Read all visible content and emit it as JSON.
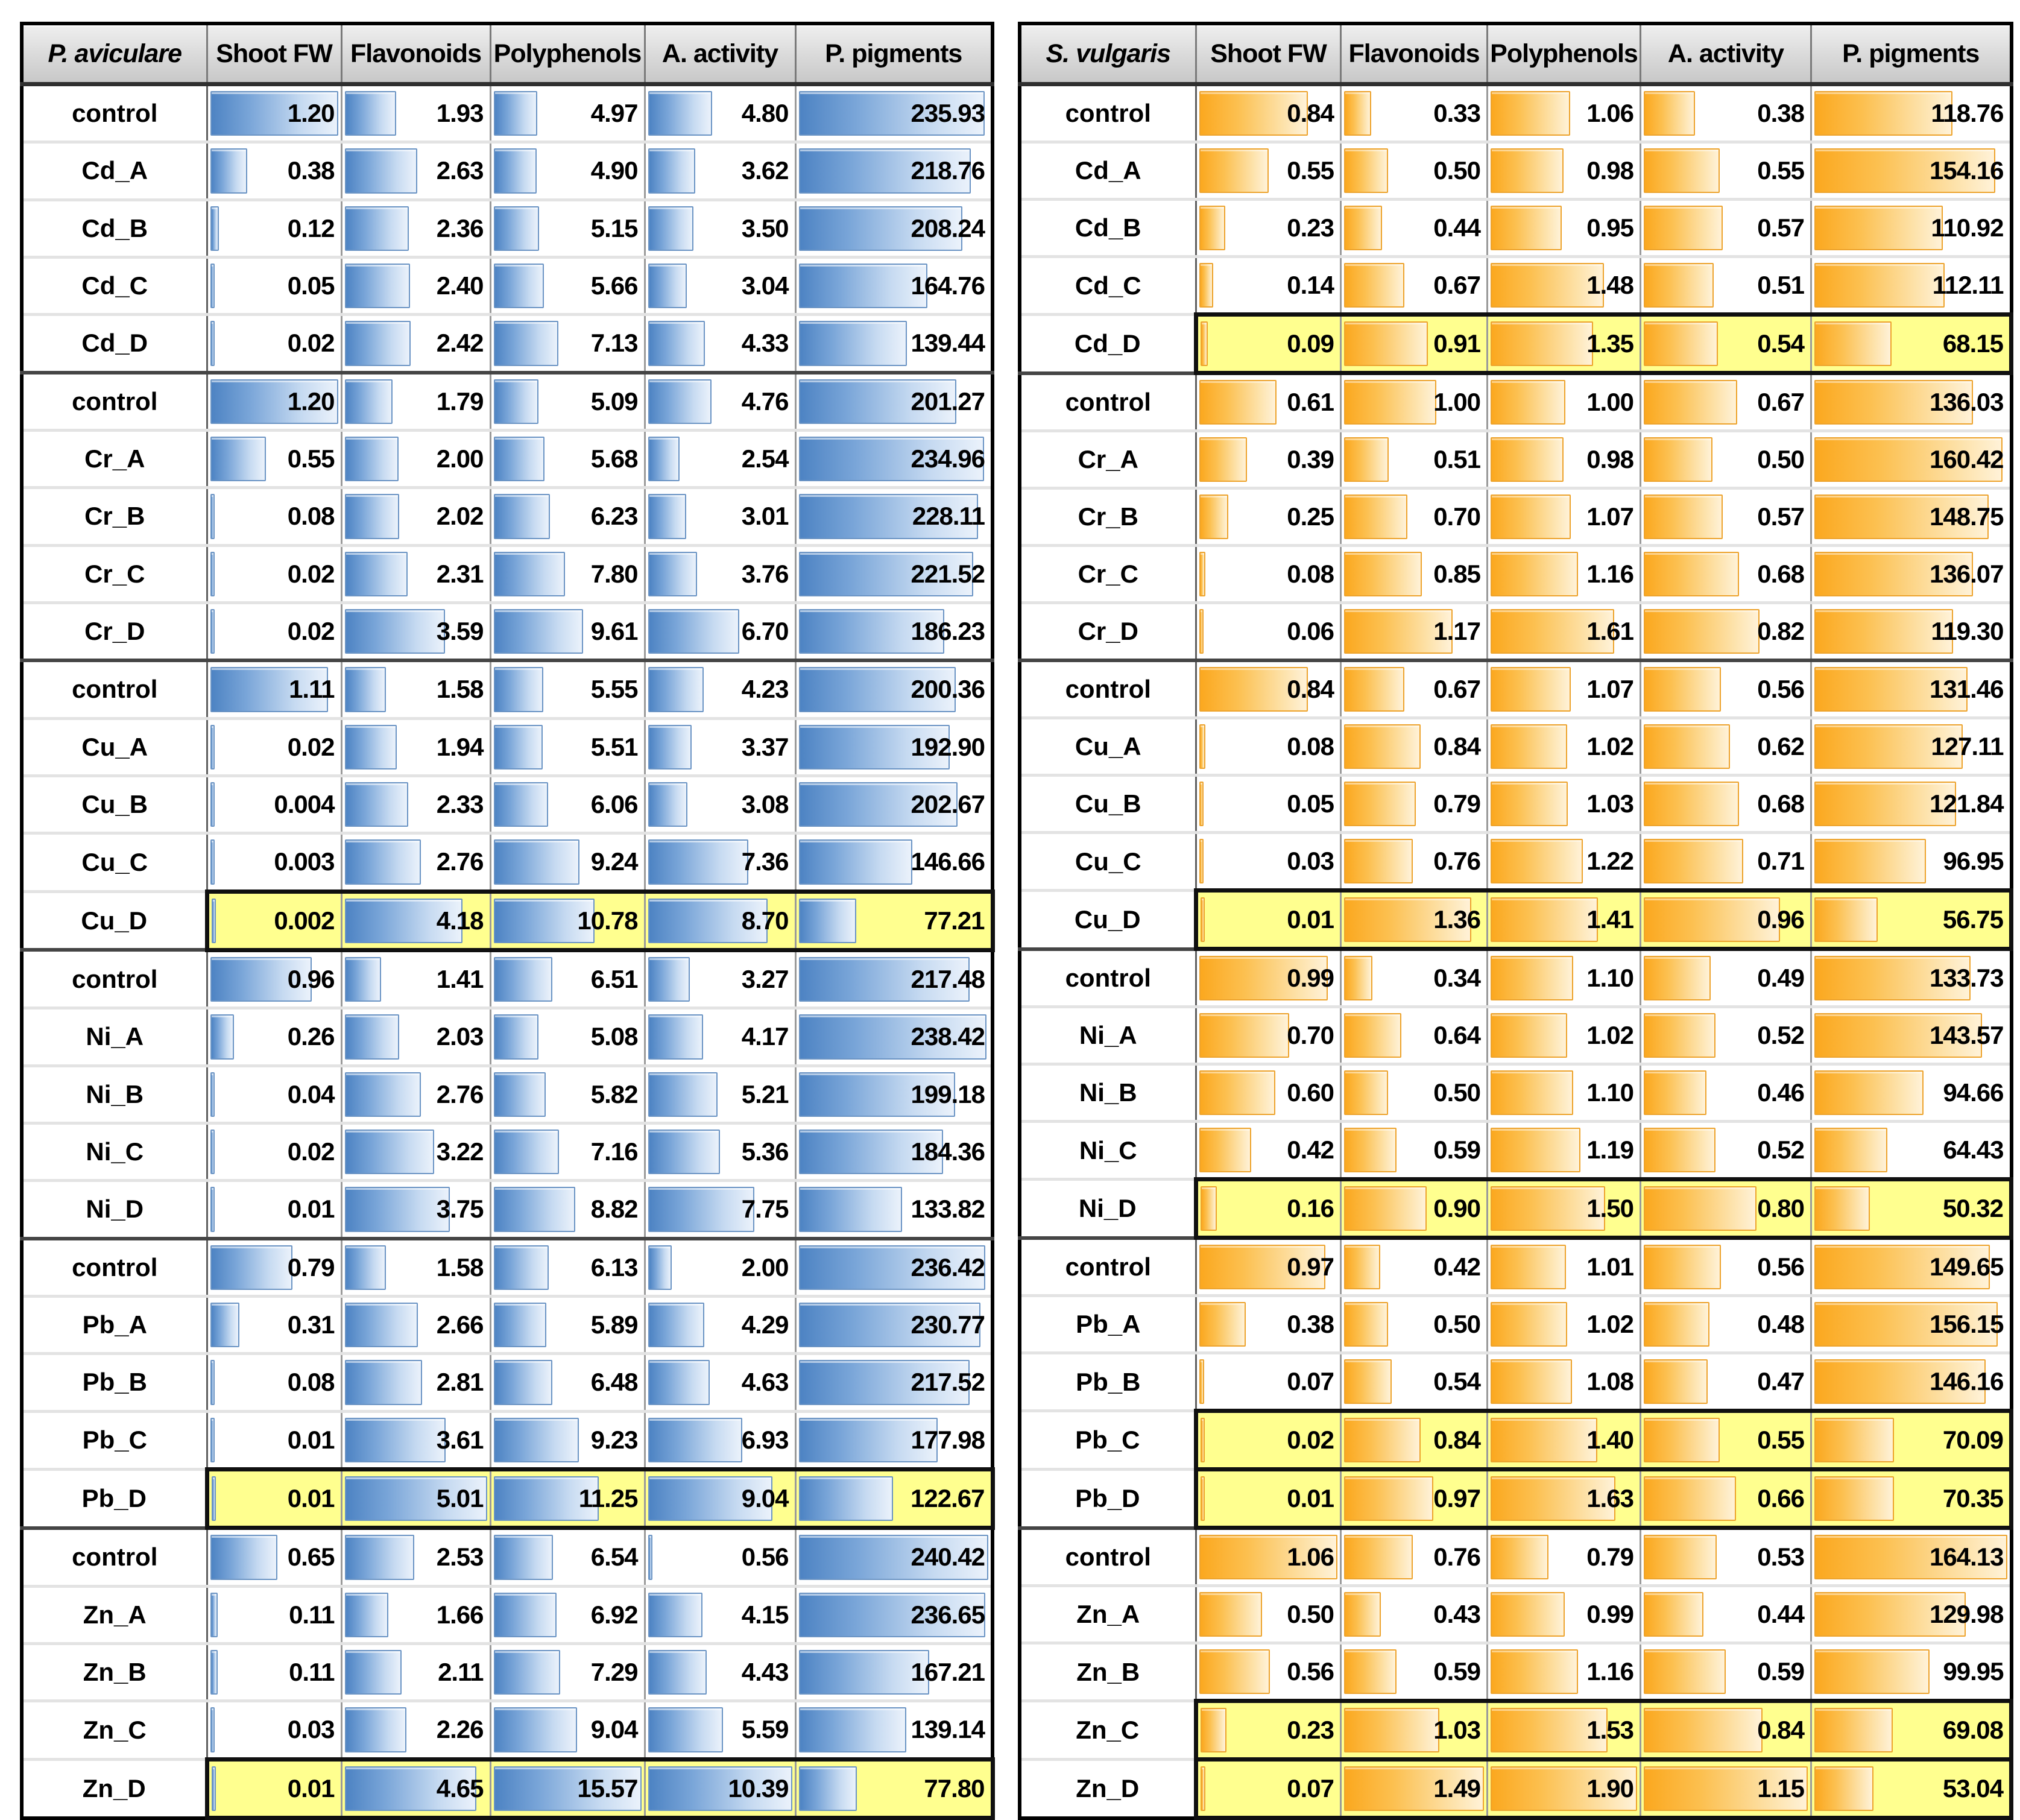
{
  "colors": {
    "blue_bar_start": "#4d83c3",
    "blue_bar_end": "#ebf2fb",
    "blue_bar_border": "#6b94c4",
    "orange_bar_start": "#fba81f",
    "orange_bar_end": "#fff2d8",
    "orange_bar_border": "#eda32d",
    "highlight_fill": "#ffff8f",
    "header_fill": "#d9d9d9"
  },
  "chart_data": {
    "type": "table",
    "subtype": "conditional-formatting-data-bars",
    "note_layout": "two side-by-side tables; bar length = value / column max; yellow rows are highlighted with thick black border",
    "tables": [
      {
        "species": "P. aviculare",
        "bar_theme": "blue",
        "columns": [
          "Shoot FW",
          "Flavonoids",
          "Polyphenols",
          "A. activity",
          "P. pigments"
        ],
        "rows": [
          {
            "label": "control",
            "values": [
              "1.20",
              "1.93",
              "4.97",
              "4.80",
              "235.93"
            ],
            "highlight": false
          },
          {
            "label": "Cd_A",
            "values": [
              "0.38",
              "2.63",
              "4.90",
              "3.62",
              "218.76"
            ],
            "highlight": false
          },
          {
            "label": "Cd_B",
            "values": [
              "0.12",
              "2.36",
              "5.15",
              "3.50",
              "208.24"
            ],
            "highlight": false
          },
          {
            "label": "Cd_C",
            "values": [
              "0.05",
              "2.40",
              "5.66",
              "3.04",
              "164.76"
            ],
            "highlight": false
          },
          {
            "label": "Cd_D",
            "values": [
              "0.02",
              "2.42",
              "7.13",
              "4.33",
              "139.44"
            ],
            "highlight": false
          },
          {
            "label": "control",
            "values": [
              "1.20",
              "1.79",
              "5.09",
              "4.76",
              "201.27"
            ],
            "highlight": false
          },
          {
            "label": "Cr_A",
            "values": [
              "0.55",
              "2.00",
              "5.68",
              "2.54",
              "234.96"
            ],
            "highlight": false
          },
          {
            "label": "Cr_B",
            "values": [
              "0.08",
              "2.02",
              "6.23",
              "3.01",
              "228.11"
            ],
            "highlight": false
          },
          {
            "label": "Cr_C",
            "values": [
              "0.02",
              "2.31",
              "7.80",
              "3.76",
              "221.52"
            ],
            "highlight": false
          },
          {
            "label": "Cr_D",
            "values": [
              "0.02",
              "3.59",
              "9.61",
              "6.70",
              "186.23"
            ],
            "highlight": false
          },
          {
            "label": "control",
            "values": [
              "1.11",
              "1.58",
              "5.55",
              "4.23",
              "200.36"
            ],
            "highlight": false
          },
          {
            "label": "Cu_A",
            "values": [
              "0.02",
              "1.94",
              "5.51",
              "3.37",
              "192.90"
            ],
            "highlight": false
          },
          {
            "label": "Cu_B",
            "values": [
              "0.004",
              "2.33",
              "6.06",
              "3.08",
              "202.67"
            ],
            "highlight": false
          },
          {
            "label": "Cu_C",
            "values": [
              "0.003",
              "2.76",
              "9.24",
              "7.36",
              "146.66"
            ],
            "highlight": false
          },
          {
            "label": "Cu_D",
            "values": [
              "0.002",
              "4.18",
              "10.78",
              "8.70",
              "77.21"
            ],
            "highlight": true
          },
          {
            "label": "control",
            "values": [
              "0.96",
              "1.41",
              "6.51",
              "3.27",
              "217.48"
            ],
            "highlight": false
          },
          {
            "label": "Ni_A",
            "values": [
              "0.26",
              "2.03",
              "5.08",
              "4.17",
              "238.42"
            ],
            "highlight": false
          },
          {
            "label": "Ni_B",
            "values": [
              "0.04",
              "2.76",
              "5.82",
              "5.21",
              "199.18"
            ],
            "highlight": false
          },
          {
            "label": "Ni_C",
            "values": [
              "0.02",
              "3.22",
              "7.16",
              "5.36",
              "184.36"
            ],
            "highlight": false
          },
          {
            "label": "Ni_D",
            "values": [
              "0.01",
              "3.75",
              "8.82",
              "7.75",
              "133.82"
            ],
            "highlight": false
          },
          {
            "label": "control",
            "values": [
              "0.79",
              "1.58",
              "6.13",
              "2.00",
              "236.42"
            ],
            "highlight": false
          },
          {
            "label": "Pb_A",
            "values": [
              "0.31",
              "2.66",
              "5.89",
              "4.29",
              "230.77"
            ],
            "highlight": false
          },
          {
            "label": "Pb_B",
            "values": [
              "0.08",
              "2.81",
              "6.48",
              "4.63",
              "217.52"
            ],
            "highlight": false
          },
          {
            "label": "Pb_C",
            "values": [
              "0.01",
              "3.61",
              "9.23",
              "6.93",
              "177.98"
            ],
            "highlight": false
          },
          {
            "label": "Pb_D",
            "values": [
              "0.01",
              "5.01",
              "11.25",
              "9.04",
              "122.67"
            ],
            "highlight": true
          },
          {
            "label": "control",
            "values": [
              "0.65",
              "2.53",
              "6.54",
              "0.56",
              "240.42"
            ],
            "highlight": false
          },
          {
            "label": "Zn_A",
            "values": [
              "0.11",
              "1.66",
              "6.92",
              "4.15",
              "236.65"
            ],
            "highlight": false
          },
          {
            "label": "Zn_B",
            "values": [
              "0.11",
              "2.11",
              "7.29",
              "4.43",
              "167.21"
            ],
            "highlight": false
          },
          {
            "label": "Zn_C",
            "values": [
              "0.03",
              "2.26",
              "9.04",
              "5.59",
              "139.14"
            ],
            "highlight": false
          },
          {
            "label": "Zn_D",
            "values": [
              "0.01",
              "4.65",
              "15.57",
              "10.39",
              "77.80"
            ],
            "highlight": true
          }
        ]
      },
      {
        "species": "S. vulgaris",
        "bar_theme": "orange",
        "columns": [
          "Shoot FW",
          "Flavonoids",
          "Polyphenols",
          "A. activity",
          "P. pigments"
        ],
        "rows": [
          {
            "label": "control",
            "values": [
              "0.84",
              "0.33",
              "1.06",
              "0.38",
              "118.76"
            ],
            "highlight": false
          },
          {
            "label": "Cd_A",
            "values": [
              "0.55",
              "0.50",
              "0.98",
              "0.55",
              "154.16"
            ],
            "highlight": false
          },
          {
            "label": "Cd_B",
            "values": [
              "0.23",
              "0.44",
              "0.95",
              "0.57",
              "110.92"
            ],
            "highlight": false
          },
          {
            "label": "Cd_C",
            "values": [
              "0.14",
              "0.67",
              "1.48",
              "0.51",
              "112.11"
            ],
            "highlight": false
          },
          {
            "label": "Cd_D",
            "values": [
              "0.09",
              "0.91",
              "1.35",
              "0.54",
              "68.15"
            ],
            "highlight": true
          },
          {
            "label": "control",
            "values": [
              "0.61",
              "1.00",
              "1.00",
              "0.67",
              "136.03"
            ],
            "highlight": false
          },
          {
            "label": "Cr_A",
            "values": [
              "0.39",
              "0.51",
              "0.98",
              "0.50",
              "160.42"
            ],
            "highlight": false
          },
          {
            "label": "Cr_B",
            "values": [
              "0.25",
              "0.70",
              "1.07",
              "0.57",
              "148.75"
            ],
            "highlight": false
          },
          {
            "label": "Cr_C",
            "values": [
              "0.08",
              "0.85",
              "1.16",
              "0.68",
              "136.07"
            ],
            "highlight": false
          },
          {
            "label": "Cr_D",
            "values": [
              "0.06",
              "1.17",
              "1.61",
              "0.82",
              "119.30"
            ],
            "highlight": false
          },
          {
            "label": "control",
            "values": [
              "0.84",
              "0.67",
              "1.07",
              "0.56",
              "131.46"
            ],
            "highlight": false
          },
          {
            "label": "Cu_A",
            "values": [
              "0.08",
              "0.84",
              "1.02",
              "0.62",
              "127.11"
            ],
            "highlight": false
          },
          {
            "label": "Cu_B",
            "values": [
              "0.05",
              "0.79",
              "1.03",
              "0.68",
              "121.84"
            ],
            "highlight": false
          },
          {
            "label": "Cu_C",
            "values": [
              "0.03",
              "0.76",
              "1.22",
              "0.71",
              "96.95"
            ],
            "highlight": false
          },
          {
            "label": "Cu_D",
            "values": [
              "0.01",
              "1.36",
              "1.41",
              "0.96",
              "56.75"
            ],
            "highlight": true
          },
          {
            "label": "control",
            "values": [
              "0.99",
              "0.34",
              "1.10",
              "0.49",
              "133.73"
            ],
            "highlight": false
          },
          {
            "label": "Ni_A",
            "values": [
              "0.70",
              "0.64",
              "1.02",
              "0.52",
              "143.57"
            ],
            "highlight": false
          },
          {
            "label": "Ni_B",
            "values": [
              "0.60",
              "0.50",
              "1.10",
              "0.46",
              "94.66"
            ],
            "highlight": false
          },
          {
            "label": "Ni_C",
            "values": [
              "0.42",
              "0.59",
              "1.19",
              "0.52",
              "64.43"
            ],
            "highlight": false
          },
          {
            "label": "Ni_D",
            "values": [
              "0.16",
              "0.90",
              "1.50",
              "0.80",
              "50.32"
            ],
            "highlight": true
          },
          {
            "label": "control",
            "values": [
              "0.97",
              "0.42",
              "1.01",
              "0.56",
              "149.65"
            ],
            "highlight": false
          },
          {
            "label": "Pb_A",
            "values": [
              "0.38",
              "0.50",
              "1.02",
              "0.48",
              "156.15"
            ],
            "highlight": false
          },
          {
            "label": "Pb_B",
            "values": [
              "0.07",
              "0.54",
              "1.08",
              "0.47",
              "146.16"
            ],
            "highlight": false
          },
          {
            "label": "Pb_C",
            "values": [
              "0.02",
              "0.84",
              "1.40",
              "0.55",
              "70.09"
            ],
            "highlight": true
          },
          {
            "label": "Pb_D",
            "values": [
              "0.01",
              "0.97",
              "1.63",
              "0.66",
              "70.35"
            ],
            "highlight": true
          },
          {
            "label": "control",
            "values": [
              "1.06",
              "0.76",
              "0.79",
              "0.53",
              "164.13"
            ],
            "highlight": false
          },
          {
            "label": "Zn_A",
            "values": [
              "0.50",
              "0.43",
              "0.99",
              "0.44",
              "129.98"
            ],
            "highlight": false
          },
          {
            "label": "Zn_B",
            "values": [
              "0.56",
              "0.59",
              "1.16",
              "0.59",
              "99.95"
            ],
            "highlight": false
          },
          {
            "label": "Zn_C",
            "values": [
              "0.23",
              "1.03",
              "1.53",
              "0.84",
              "69.08"
            ],
            "highlight": true
          },
          {
            "label": "Zn_D",
            "values": [
              "0.07",
              "1.49",
              "1.90",
              "1.15",
              "53.04"
            ],
            "highlight": true
          }
        ]
      }
    ]
  }
}
